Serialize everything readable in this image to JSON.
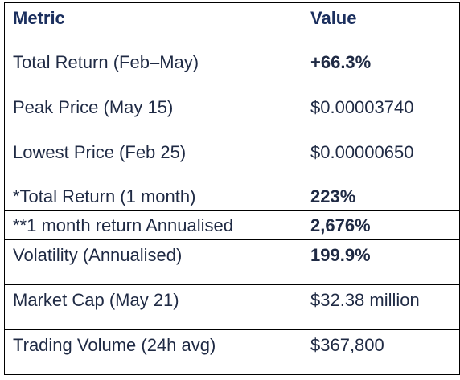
{
  "table": {
    "headers": [
      "Metric",
      "Value"
    ],
    "rows": [
      {
        "metric": "Total Return (Feb–May)",
        "value": "+66.3%",
        "value_bold": true,
        "size": "tall"
      },
      {
        "metric": "Peak Price (May 15)",
        "value": "$0.00003740",
        "value_bold": false,
        "size": "tall"
      },
      {
        "metric": "Lowest Price (Feb 25)",
        "value": "$0.00000650",
        "value_bold": false,
        "size": "tall"
      },
      {
        "metric": "*Total Return (1 month)",
        "value": "223%",
        "value_bold": true,
        "size": "short"
      },
      {
        "metric": "**1 month return Annualised",
        "value": "2,676%",
        "value_bold": true,
        "size": "short"
      },
      {
        "metric": "Volatility (Annualised)",
        "value": "199.9%",
        "value_bold": true,
        "size": "tall"
      },
      {
        "metric": "Market Cap (May 21)",
        "value": "$32.38 million",
        "value_bold": false,
        "size": "tall"
      },
      {
        "metric": "Trading Volume (24h avg)",
        "value": "$367,800",
        "value_bold": false,
        "size": "tall"
      }
    ]
  },
  "colors": {
    "header_text": "#1b2f5e",
    "body_text": "#1f2a44",
    "border": "#000000"
  }
}
